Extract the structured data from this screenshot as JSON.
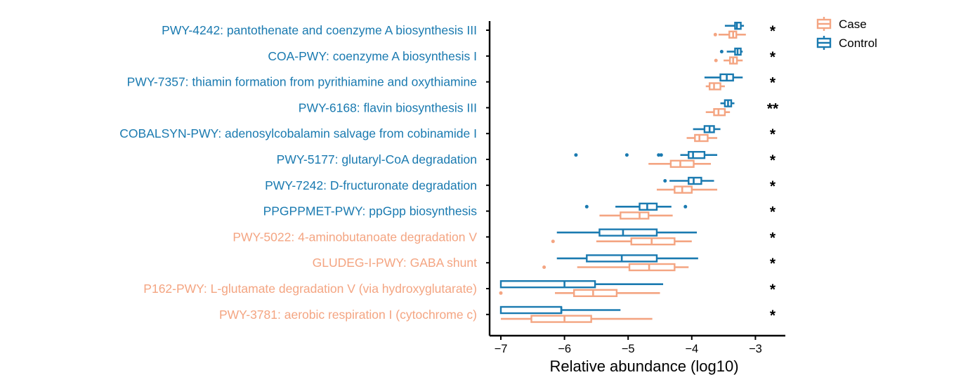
{
  "chart_data": {
    "type": "boxplot",
    "orientation": "horizontal",
    "xlabel": "Relative abundance (log10)",
    "xlim": [
      -7.2,
      -2.55
    ],
    "xticks": [
      -7,
      -6,
      -5,
      -4,
      -3
    ],
    "xtick_labels": [
      "−7",
      "−6",
      "−5",
      "−4",
      "−3"
    ],
    "colors": {
      "Case": "#F4A582",
      "Control": "#1A7AB0",
      "axis": "#000000"
    },
    "legend": {
      "position": "top-right",
      "entries": [
        {
          "name": "Case",
          "color": "#F4A582"
        },
        {
          "name": "Control",
          "color": "#1A7AB0"
        }
      ]
    },
    "categories": [
      {
        "label": "PWY-4242: pantothenate and coenzyme A biosynthesis III",
        "enriched_in": "Control",
        "significance": "*",
        "boxes": {
          "Control": {
            "whisker_low": -3.48,
            "q1": -3.32,
            "median": -3.29,
            "q3": -3.23,
            "whisker_high": -3.18,
            "outliers": []
          },
          "Case": {
            "whisker_low": -3.58,
            "q1": -3.41,
            "median": -3.35,
            "q3": -3.3,
            "whisker_high": -3.15,
            "outliers": [
              -3.63
            ]
          }
        }
      },
      {
        "label": "COA-PWY: coenzyme A biosynthesis I",
        "enriched_in": "Control",
        "significance": "*",
        "boxes": {
          "Control": {
            "whisker_low": -3.45,
            "q1": -3.32,
            "median": -3.28,
            "q3": -3.23,
            "whisker_high": -3.2,
            "outliers": [
              -3.53
            ]
          },
          "Case": {
            "whisker_low": -3.5,
            "q1": -3.4,
            "median": -3.35,
            "q3": -3.29,
            "whisker_high": -3.2,
            "outliers": [
              -3.62
            ]
          }
        }
      },
      {
        "label": "PWY-7357: thiamin formation from pyrithiamine and oxythiamine",
        "enriched_in": "Control",
        "significance": "*",
        "boxes": {
          "Control": {
            "whisker_low": -3.8,
            "q1": -3.55,
            "median": -3.45,
            "q3": -3.35,
            "whisker_high": -3.2,
            "outliers": []
          },
          "Case": {
            "whisker_low": -3.78,
            "q1": -3.72,
            "median": -3.65,
            "q3": -3.55,
            "whisker_high": -3.48,
            "outliers": []
          }
        }
      },
      {
        "label": "PWY-6168: flavin biosynthesis III",
        "enriched_in": "Control",
        "significance": "**",
        "boxes": {
          "Control": {
            "whisker_low": -3.55,
            "q1": -3.48,
            "median": -3.43,
            "q3": -3.38,
            "whisker_high": -3.33,
            "outliers": []
          },
          "Case": {
            "whisker_low": -3.78,
            "q1": -3.65,
            "median": -3.58,
            "q3": -3.48,
            "whisker_high": -3.4,
            "outliers": []
          }
        }
      },
      {
        "label": "COBALSYN-PWY: adenosylcobalamin salvage from cobinamide I",
        "enriched_in": "Control",
        "significance": "*",
        "boxes": {
          "Control": {
            "whisker_low": -3.98,
            "q1": -3.8,
            "median": -3.72,
            "q3": -3.65,
            "whisker_high": -3.55,
            "outliers": []
          },
          "Case": {
            "whisker_low": -4.08,
            "q1": -3.95,
            "median": -3.88,
            "q3": -3.75,
            "whisker_high": -3.6,
            "outliers": []
          }
        }
      },
      {
        "label": "PWY-5177: glutaryl-CoA degradation",
        "enriched_in": "Control",
        "significance": "*",
        "boxes": {
          "Control": {
            "whisker_low": -4.18,
            "q1": -4.05,
            "median": -3.98,
            "q3": -3.8,
            "whisker_high": -3.6,
            "outliers": [
              -5.82,
              -5.02,
              -4.52,
              -4.48
            ]
          },
          "Case": {
            "whisker_low": -4.68,
            "q1": -4.33,
            "median": -4.18,
            "q3": -3.97,
            "whisker_high": -3.7,
            "outliers": []
          }
        }
      },
      {
        "label": "PWY-7242: D-fructuronate degradation",
        "enriched_in": "Control",
        "significance": "*",
        "boxes": {
          "Control": {
            "whisker_low": -4.35,
            "q1": -4.05,
            "median": -3.97,
            "q3": -3.85,
            "whisker_high": -3.65,
            "outliers": [
              -4.42
            ]
          },
          "Case": {
            "whisker_low": -4.55,
            "q1": -4.27,
            "median": -4.15,
            "q3": -4.0,
            "whisker_high": -3.6,
            "outliers": []
          }
        }
      },
      {
        "label": "PPGPPMET-PWY: ppGpp biosynthesis",
        "enriched_in": "Control",
        "significance": "*",
        "boxes": {
          "Control": {
            "whisker_low": -5.2,
            "q1": -4.82,
            "median": -4.7,
            "q3": -4.55,
            "whisker_high": -4.32,
            "outliers": [
              -5.65,
              -4.1
            ]
          },
          "Case": {
            "whisker_low": -5.45,
            "q1": -5.12,
            "median": -4.82,
            "q3": -4.68,
            "whisker_high": -4.3,
            "outliers": []
          }
        }
      },
      {
        "label": "PWY-5022: 4-aminobutanoate degradation V",
        "enriched_in": "Case",
        "significance": "*",
        "boxes": {
          "Control": {
            "whisker_low": -6.12,
            "q1": -5.45,
            "median": -5.08,
            "q3": -4.55,
            "whisker_high": -3.92,
            "outliers": []
          },
          "Case": {
            "whisker_low": -5.5,
            "q1": -4.95,
            "median": -4.63,
            "q3": -4.27,
            "whisker_high": -4.0,
            "outliers": [
              -6.18
            ]
          }
        }
      },
      {
        "label": "GLUDEG-I-PWY: GABA shunt",
        "enriched_in": "Case",
        "significance": "*",
        "boxes": {
          "Control": {
            "whisker_low": -6.12,
            "q1": -5.65,
            "median": -5.1,
            "q3": -4.55,
            "whisker_high": -3.9,
            "outliers": []
          },
          "Case": {
            "whisker_low": -5.8,
            "q1": -4.98,
            "median": -4.67,
            "q3": -4.27,
            "whisker_high": -4.05,
            "outliers": [
              -6.32
            ]
          }
        }
      },
      {
        "label": "P162-PWY: L-glutamate degradation V (via hydroxyglutarate)",
        "enriched_in": "Case",
        "significance": "*",
        "boxes": {
          "Control": {
            "whisker_low": -7.0,
            "q1": -7.0,
            "median": -6.0,
            "q3": -5.52,
            "whisker_high": -4.45,
            "outliers": []
          },
          "Case": {
            "whisker_low": -6.15,
            "q1": -5.85,
            "median": -5.55,
            "q3": -5.18,
            "whisker_high": -4.5,
            "outliers": [
              -7.0
            ]
          }
        }
      },
      {
        "label": "PWY-3781: aerobic respiration I (cytochrome c)",
        "enriched_in": "Case",
        "significance": "*",
        "boxes": {
          "Control": {
            "whisker_low": -7.0,
            "q1": -7.0,
            "median": -6.05,
            "q3": -6.05,
            "whisker_high": -5.12,
            "outliers": []
          },
          "Case": {
            "whisker_low": -7.0,
            "q1": -6.52,
            "median": -6.0,
            "q3": -5.58,
            "whisker_high": -4.62,
            "outliers": []
          }
        }
      }
    ]
  }
}
